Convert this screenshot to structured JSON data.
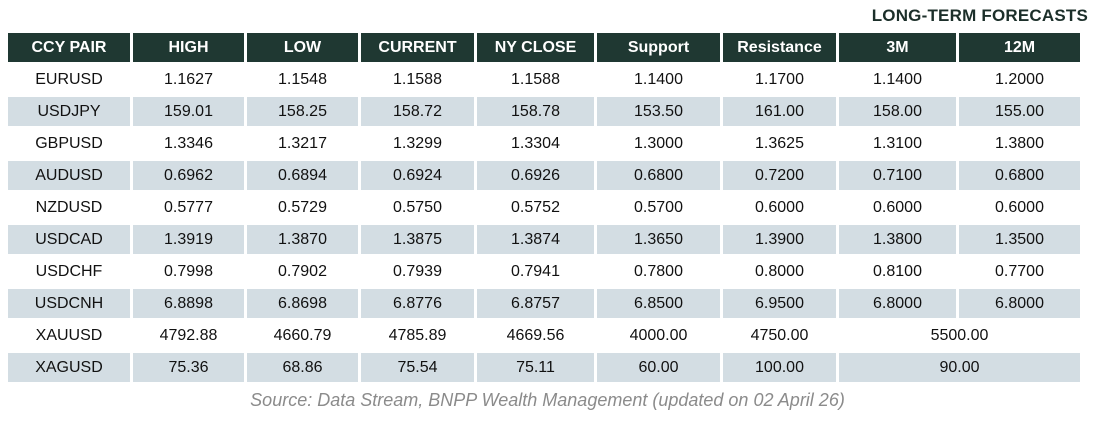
{
  "title": "LONG-TERM FORECASTS",
  "source": "Source: Data Stream, BNPP Wealth Management (updated on 02 April 26)",
  "colors": {
    "header_bg": "#1f3832",
    "header_text": "#ffffff",
    "row_bg": "#ffffff",
    "row_alt_bg": "#d3dde3",
    "body_text": "#111111",
    "title_text": "#1c2f2a",
    "source_text": "#8b8b8b"
  },
  "table": {
    "columns": [
      "CCY PAIR",
      "HIGH",
      "LOW",
      "CURRENT",
      "NY CLOSE",
      "Support",
      "Resistance",
      "3M",
      "12M"
    ],
    "rows": [
      {
        "pair": "EURUSD",
        "high": "1.1627",
        "low": "1.1548",
        "current": "1.1588",
        "ny_close": "1.1588",
        "support": "1.1400",
        "resistance": "1.1700",
        "m3": "1.1400",
        "m12": "1.2000"
      },
      {
        "pair": "USDJPY",
        "high": "159.01",
        "low": "158.25",
        "current": "158.72",
        "ny_close": "158.78",
        "support": "153.50",
        "resistance": "161.00",
        "m3": "158.00",
        "m12": "155.00"
      },
      {
        "pair": "GBPUSD",
        "high": "1.3346",
        "low": "1.3217",
        "current": "1.3299",
        "ny_close": "1.3304",
        "support": "1.3000",
        "resistance": "1.3625",
        "m3": "1.3100",
        "m12": "1.3800"
      },
      {
        "pair": "AUDUSD",
        "high": "0.6962",
        "low": "0.6894",
        "current": "0.6924",
        "ny_close": "0.6926",
        "support": "0.6800",
        "resistance": "0.7200",
        "m3": "0.7100",
        "m12": "0.6800"
      },
      {
        "pair": "NZDUSD",
        "high": "0.5777",
        "low": "0.5729",
        "current": "0.5750",
        "ny_close": "0.5752",
        "support": "0.5700",
        "resistance": "0.6000",
        "m3": "0.6000",
        "m12": "0.6000"
      },
      {
        "pair": "USDCAD",
        "high": "1.3919",
        "low": "1.3870",
        "current": "1.3875",
        "ny_close": "1.3874",
        "support": "1.3650",
        "resistance": "1.3900",
        "m3": "1.3800",
        "m12": "1.3500"
      },
      {
        "pair": "USDCHF",
        "high": "0.7998",
        "low": "0.7902",
        "current": "0.7939",
        "ny_close": "0.7941",
        "support": "0.7800",
        "resistance": "0.8000",
        "m3": "0.8100",
        "m12": "0.7700"
      },
      {
        "pair": "USDCNH",
        "high": "6.8898",
        "low": "6.8698",
        "current": "6.8776",
        "ny_close": "6.8757",
        "support": "6.8500",
        "resistance": "6.9500",
        "m3": "6.8000",
        "m12": "6.8000"
      },
      {
        "pair": "XAUUSD",
        "high": "4792.88",
        "low": "4660.79",
        "current": "4785.89",
        "ny_close": "4669.56",
        "support": "4000.00",
        "resistance": "4750.00",
        "forecast_merged": "5500.00"
      },
      {
        "pair": "XAGUSD",
        "high": "75.36",
        "low": "68.86",
        "current": "75.54",
        "ny_close": "75.11",
        "support": "60.00",
        "resistance": "100.00",
        "forecast_merged": "90.00"
      }
    ]
  }
}
